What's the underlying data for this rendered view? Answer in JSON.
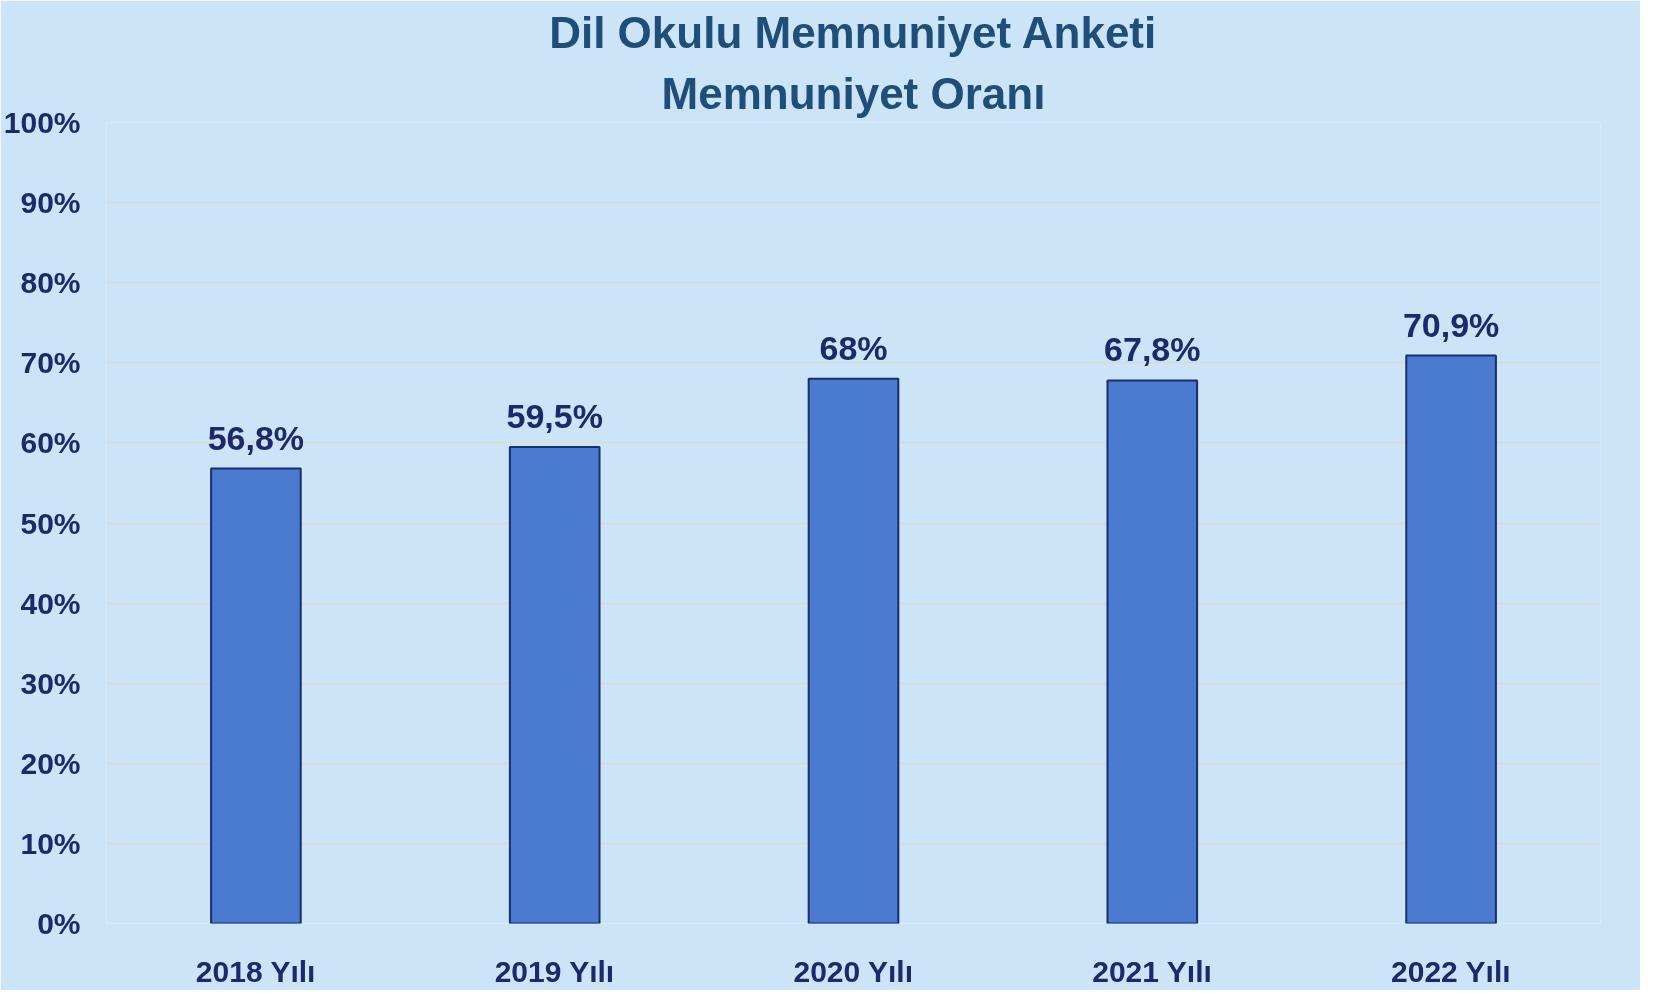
{
  "chart_data": {
    "type": "bar",
    "title": "Dil Okulu Memnuniyet Anketi",
    "subtitle": "Memnuniyet Oranı",
    "categories": [
      "2018 Yılı",
      "2019 Yılı",
      "2020 Yılı",
      "2021 Yılı",
      "2022 Yılı"
    ],
    "values": [
      56.8,
      59.5,
      68,
      67.8,
      70.9
    ],
    "value_labels": [
      "56,8%",
      "59,5%",
      "68%",
      "67,8%",
      "70,9%"
    ],
    "color": "#4a7bd0",
    "ylim": [
      0,
      100
    ],
    "yticks": [
      {
        "value": 0,
        "label": "0%"
      },
      {
        "value": 10,
        "label": "10%"
      },
      {
        "value": 20,
        "label": "20%"
      },
      {
        "value": 30,
        "label": "30%"
      },
      {
        "value": 40,
        "label": "40%"
      },
      {
        "value": 50,
        "label": "50%"
      },
      {
        "value": 60,
        "label": "60%"
      },
      {
        "value": 70,
        "label": "70%"
      },
      {
        "value": 80,
        "label": "80%"
      },
      {
        "value": 90,
        "label": "90%"
      },
      {
        "value": 100,
        "label": "100%"
      }
    ],
    "grid": "y"
  }
}
